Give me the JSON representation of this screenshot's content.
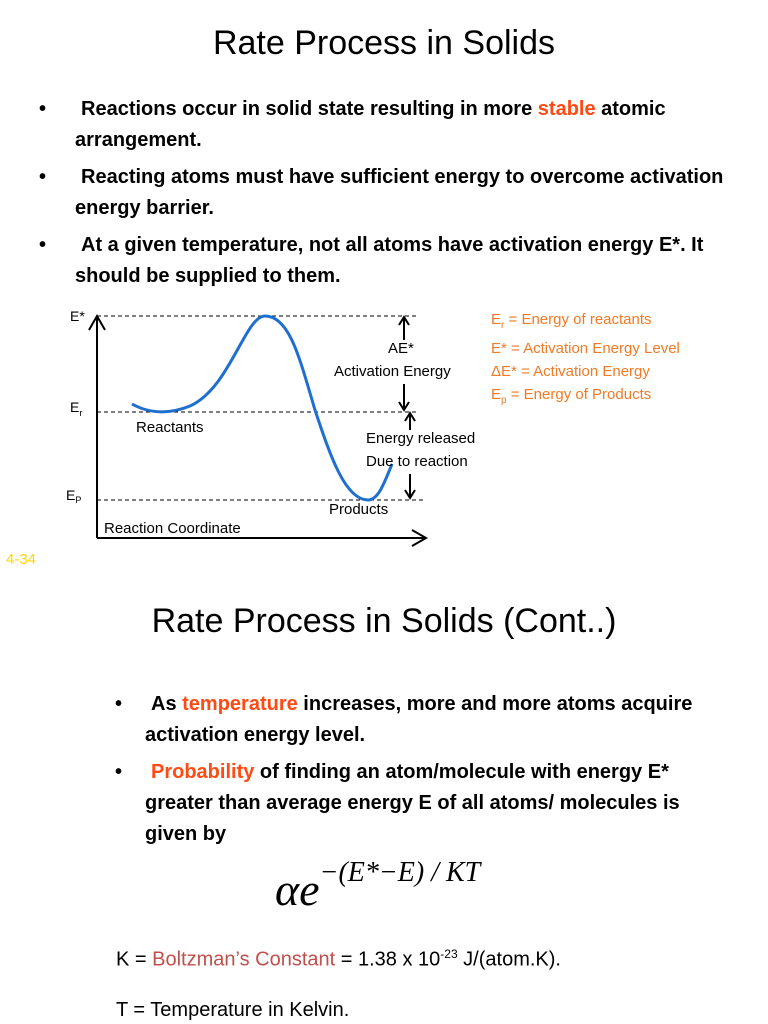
{
  "slide1": {
    "title": "Rate Process in Solids",
    "bullets": [
      {
        "lead": "Reactions occur in solid state resulting in more ",
        "highlight": "stable",
        "rest": " atomic arrangement."
      },
      {
        "lead": "Reacting atoms must have sufficient energy to overcome activation energy barrier.",
        "highlight": "",
        "rest": ""
      },
      {
        "lead": "At a given temperature, not all atoms have activation energy E*. It should be supplied to them.",
        "highlight": "",
        "rest": ""
      }
    ],
    "bullet_symbol": "•",
    "diagram": {
      "label_e_star": "E*",
      "label_e_r": "E",
      "label_e_r_sub": "r",
      "label_e_p": "E",
      "label_e_p_sub": "P",
      "x_axis_label": "Reaction Coordinate",
      "reactants_label": "Reactants",
      "products_label": "Products",
      "activation_line1": "AE*",
      "activation_line2": "Activation Energy",
      "released_line1": "Energy released",
      "released_line2": "Due to reaction"
    },
    "legend": [
      {
        "sym": "E",
        "sub": "r",
        "text": " = Energy of reactants"
      },
      {
        "sym": "E*",
        "sub": "",
        "text": " = Activation Energy Level"
      },
      {
        "sym": "ΔE*",
        "sub": "",
        "text": " = Activation Energy"
      },
      {
        "sym": "E",
        "sub": "p",
        "text": " = Energy of Products"
      }
    ],
    "slide_number": "4-34"
  },
  "slide2": {
    "title": "Rate Process in Solids (Cont..)",
    "bullets": [
      {
        "lead": "As ",
        "highlight": "temperature",
        "rest": " increases, more and more atoms acquire activation energy level."
      },
      {
        "lead": "",
        "highlight": "Probability",
        "rest": " of finding an atom/molecule with energy E* greater than average energy E of all atoms/ molecules is given by"
      }
    ],
    "bullet_symbol": "•",
    "formula_base": "αe",
    "formula_exponent": "−(E*−E) / KT",
    "k_line": {
      "prefix": "K = ",
      "name": "Boltzman’s Constant",
      "value": " = 1.38 x 10",
      "exp": "-23",
      "unit": "  J/(atom.K)."
    },
    "t_line": "T = Temperature in Kelvin."
  },
  "colors": {
    "highlight_red": "#ff4a14",
    "legend_orange": "#f07a25",
    "constant_brown": "#c0504d",
    "slide_number_yellow": "#ffd700"
  }
}
